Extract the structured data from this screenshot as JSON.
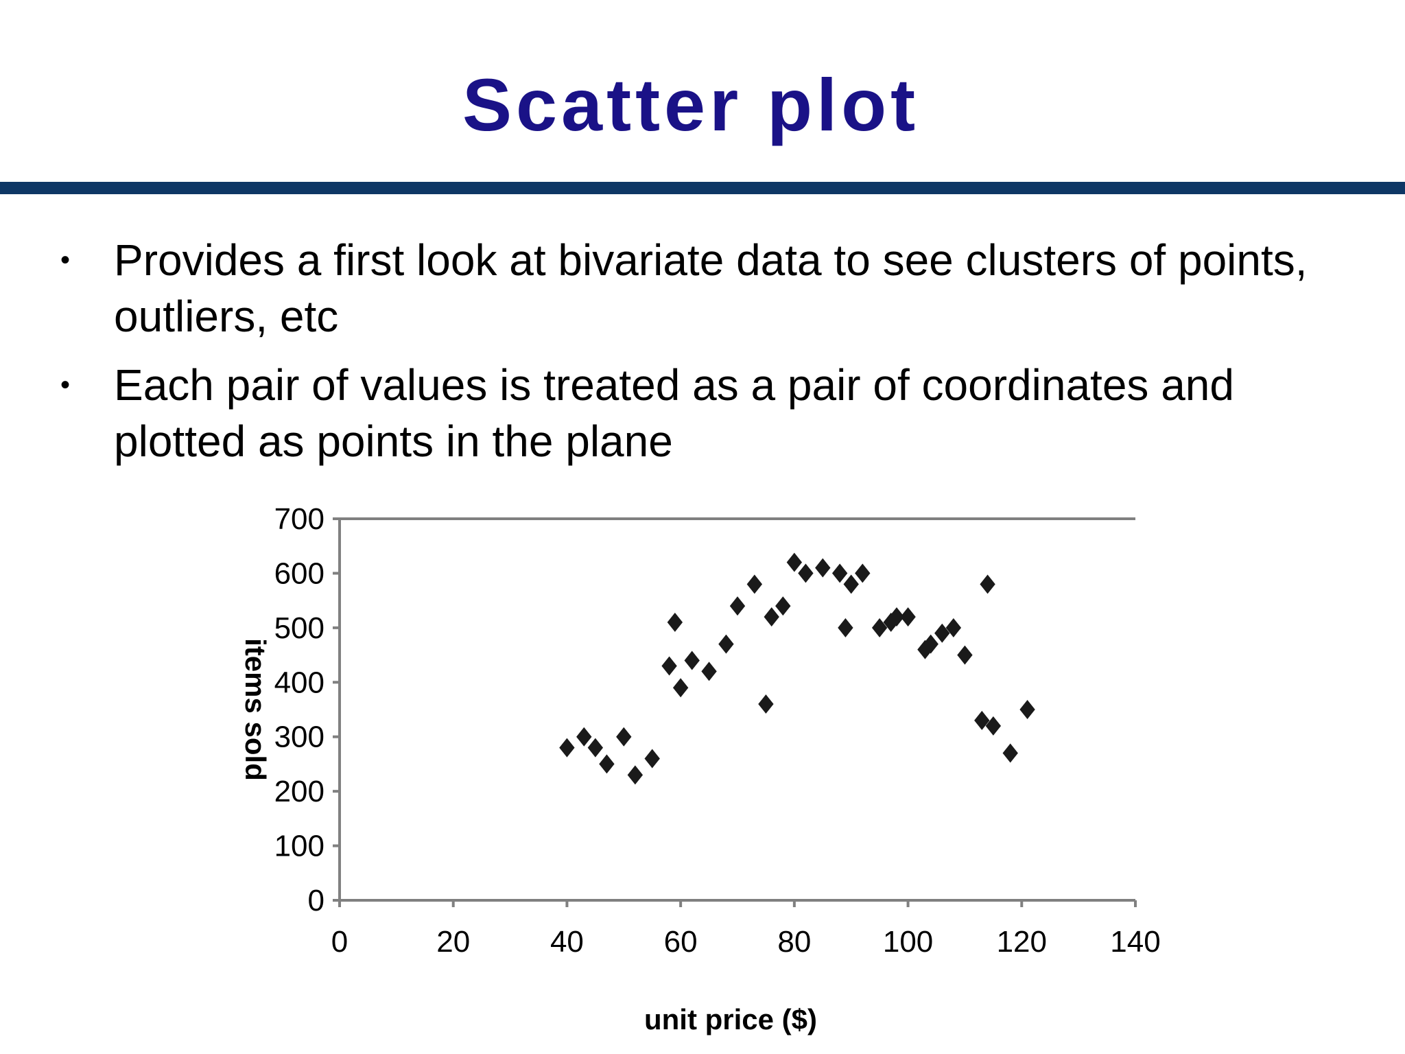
{
  "slide": {
    "title": "Scatter plot",
    "bullets": [
      {
        "marker": "•",
        "text": "Provides a first look at bivariate data to see clusters of points, outliers, etc"
      },
      {
        "marker": "•",
        "text": "Each pair of values is treated as a pair of coordinates and plotted as points in the plane"
      }
    ]
  },
  "colors": {
    "title": "#1a1287",
    "rule": "#0e3765",
    "axis": "#808080",
    "marker": "#1a1a1a"
  },
  "chart_data": {
    "type": "scatter",
    "title": "",
    "xlabel": "unit price ($)",
    "ylabel": "items sold",
    "xlim": [
      0,
      140
    ],
    "ylim": [
      0,
      700
    ],
    "x_ticks": [
      "0",
      "20",
      "40",
      "60",
      "80",
      "100",
      "120",
      "140"
    ],
    "y_ticks": [
      "0",
      "100",
      "200",
      "300",
      "400",
      "500",
      "600",
      "700"
    ],
    "grid": false,
    "marker": "diamond",
    "points": [
      [
        40,
        280
      ],
      [
        43,
        300
      ],
      [
        45,
        280
      ],
      [
        47,
        250
      ],
      [
        50,
        300
      ],
      [
        52,
        230
      ],
      [
        55,
        260
      ],
      [
        58,
        430
      ],
      [
        59,
        510
      ],
      [
        60,
        390
      ],
      [
        62,
        440
      ],
      [
        65,
        420
      ],
      [
        68,
        470
      ],
      [
        70,
        540
      ],
      [
        73,
        580
      ],
      [
        75,
        360
      ],
      [
        76,
        520
      ],
      [
        78,
        540
      ],
      [
        80,
        620
      ],
      [
        82,
        600
      ],
      [
        85,
        610
      ],
      [
        88,
        600
      ],
      [
        90,
        580
      ],
      [
        89,
        500
      ],
      [
        92,
        600
      ],
      [
        95,
        500
      ],
      [
        97,
        510
      ],
      [
        98,
        520
      ],
      [
        100,
        520
      ],
      [
        103,
        460
      ],
      [
        104,
        470
      ],
      [
        106,
        490
      ],
      [
        108,
        500
      ],
      [
        110,
        450
      ],
      [
        113,
        330
      ],
      [
        114,
        580
      ],
      [
        115,
        320
      ],
      [
        118,
        270
      ],
      [
        121,
        350
      ]
    ]
  }
}
